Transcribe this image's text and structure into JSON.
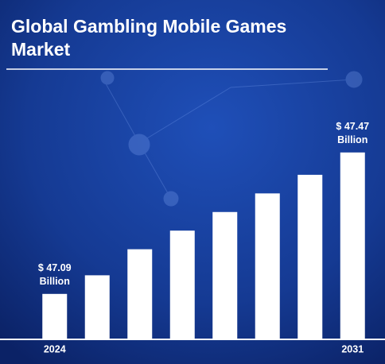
{
  "chart_data": {
    "type": "bar",
    "title": "Global Gambling Mobile Games Market",
    "categories": [
      "2024",
      null,
      null,
      null,
      null,
      null,
      null,
      "2031"
    ],
    "values": [
      47.09,
      47.14,
      47.21,
      47.26,
      47.31,
      47.36,
      47.41,
      47.47
    ],
    "value_labels": [
      "$ 47.09 Billion",
      null,
      null,
      null,
      null,
      null,
      null,
      "$ 47.47 Billion"
    ],
    "color": "#ffffff",
    "ylim": [
      46.97,
      47.57
    ]
  }
}
